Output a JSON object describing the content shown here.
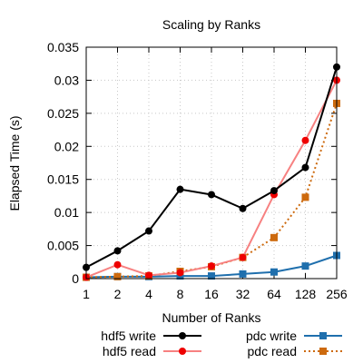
{
  "chart_data": {
    "type": "line",
    "title": "Scaling by Ranks",
    "xlabel": "Number of Ranks",
    "ylabel": "Elapsed Time (s)",
    "categories": [
      "1",
      "2",
      "4",
      "8",
      "16",
      "32",
      "64",
      "128",
      "256"
    ],
    "x": [
      1,
      2,
      4,
      8,
      16,
      32,
      64,
      128,
      256
    ],
    "xscale": "log2",
    "ylim": [
      0,
      0.035
    ],
    "yticks": [
      "0",
      "0.005",
      "0.01",
      "0.015",
      "0.02",
      "0.025",
      "0.03",
      "0.035"
    ],
    "grid": "dotted",
    "legend_position": "bottom",
    "series": [
      {
        "name": "hdf5 write",
        "color": "#000000",
        "marker": "circle",
        "line": "solid",
        "values": [
          0.0017,
          0.0042,
          0.0072,
          0.0135,
          0.0127,
          0.0106,
          0.0133,
          0.0168,
          0.032
        ]
      },
      {
        "name": "hdf5 read",
        "color": "#f78181",
        "marker_color": "#ee0000",
        "marker": "circle",
        "line": "solid",
        "values": [
          0.0002,
          0.0021,
          0.0005,
          0.0009,
          0.0019,
          0.0032,
          0.0127,
          0.0209,
          0.03
        ]
      },
      {
        "name": "pdc write",
        "color": "#1f6fad",
        "marker": "square",
        "line": "solid",
        "values": [
          0.0002,
          0.0003,
          0.0003,
          0.0004,
          0.0004,
          0.0007,
          0.001,
          0.0019,
          0.0035
        ]
      },
      {
        "name": "pdc read",
        "color": "#cd6a0e",
        "marker": "square",
        "line": "dotted",
        "values": [
          0.0002,
          0.0003,
          0.0004,
          0.0011,
          0.0018,
          0.0032,
          0.0062,
          0.0123,
          0.0265
        ]
      }
    ]
  }
}
